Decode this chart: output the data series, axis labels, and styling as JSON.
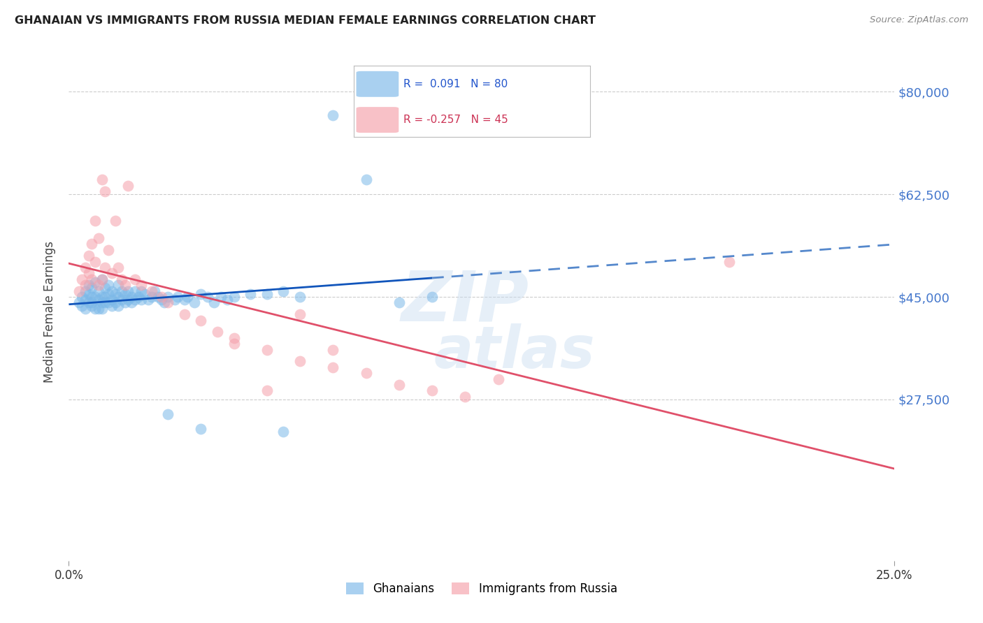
{
  "title": "GHANAIAN VS IMMIGRANTS FROM RUSSIA MEDIAN FEMALE EARNINGS CORRELATION CHART",
  "source": "Source: ZipAtlas.com",
  "ylabel": "Median Female Earnings",
  "xlim": [
    0.0,
    0.25
  ],
  "ylim": [
    0,
    85000
  ],
  "yticks": [
    0,
    27500,
    45000,
    62500,
    80000
  ],
  "ytick_labels": [
    "",
    "$27,500",
    "$45,000",
    "$62,500",
    "$80,000"
  ],
  "blue_color": "#7BB8E8",
  "pink_color": "#F5A0AA",
  "blue_R": 0.091,
  "blue_N": 80,
  "pink_R": -0.257,
  "pink_N": 45,
  "blue_scatter_x": [
    0.003,
    0.004,
    0.004,
    0.005,
    0.005,
    0.005,
    0.006,
    0.006,
    0.006,
    0.007,
    0.007,
    0.007,
    0.007,
    0.008,
    0.008,
    0.008,
    0.009,
    0.009,
    0.009,
    0.01,
    0.01,
    0.01,
    0.01,
    0.011,
    0.011,
    0.011,
    0.012,
    0.012,
    0.012,
    0.013,
    0.013,
    0.013,
    0.014,
    0.014,
    0.015,
    0.015,
    0.015,
    0.016,
    0.016,
    0.017,
    0.017,
    0.018,
    0.018,
    0.019,
    0.019,
    0.02,
    0.02,
    0.021,
    0.022,
    0.022,
    0.023,
    0.024,
    0.025,
    0.026,
    0.027,
    0.028,
    0.029,
    0.03,
    0.032,
    0.033,
    0.035,
    0.036,
    0.038,
    0.04,
    0.042,
    0.044,
    0.046,
    0.048,
    0.05,
    0.055,
    0.06,
    0.065,
    0.07,
    0.08,
    0.09,
    0.1,
    0.11,
    0.065,
    0.04,
    0.03
  ],
  "blue_scatter_y": [
    44000,
    45000,
    43500,
    46000,
    44500,
    43000,
    47000,
    45500,
    44000,
    46500,
    45000,
    44000,
    43500,
    47500,
    45000,
    43000,
    46000,
    44500,
    43000,
    48000,
    45000,
    44000,
    43000,
    46500,
    45000,
    44000,
    47000,
    45500,
    44000,
    46000,
    44500,
    43500,
    45500,
    44000,
    47000,
    45000,
    43500,
    46000,
    44500,
    45500,
    44000,
    46000,
    44500,
    45000,
    44000,
    46000,
    44500,
    45000,
    46000,
    44500,
    45500,
    44500,
    45000,
    46000,
    45000,
    44500,
    44000,
    45000,
    44500,
    45000,
    44500,
    45000,
    44000,
    45500,
    45000,
    44000,
    45000,
    44500,
    45000,
    45500,
    45500,
    46000,
    45000,
    76000,
    65000,
    44000,
    45000,
    22000,
    22500,
    25000
  ],
  "pink_scatter_x": [
    0.003,
    0.004,
    0.005,
    0.005,
    0.006,
    0.006,
    0.007,
    0.007,
    0.008,
    0.008,
    0.009,
    0.009,
    0.01,
    0.01,
    0.011,
    0.011,
    0.012,
    0.013,
    0.014,
    0.015,
    0.016,
    0.017,
    0.018,
    0.02,
    0.022,
    0.025,
    0.028,
    0.03,
    0.035,
    0.04,
    0.045,
    0.05,
    0.06,
    0.07,
    0.08,
    0.09,
    0.1,
    0.11,
    0.12,
    0.13,
    0.05,
    0.06,
    0.07,
    0.08,
    0.2
  ],
  "pink_scatter_y": [
    46000,
    48000,
    50000,
    47000,
    52000,
    49000,
    54000,
    48000,
    58000,
    51000,
    55000,
    47000,
    65000,
    48000,
    63000,
    50000,
    53000,
    49000,
    58000,
    50000,
    48000,
    47000,
    64000,
    48000,
    47000,
    46000,
    45000,
    44000,
    42000,
    41000,
    39000,
    38000,
    36000,
    34000,
    33000,
    32000,
    30000,
    29000,
    28000,
    31000,
    37000,
    29000,
    42000,
    36000,
    51000
  ]
}
